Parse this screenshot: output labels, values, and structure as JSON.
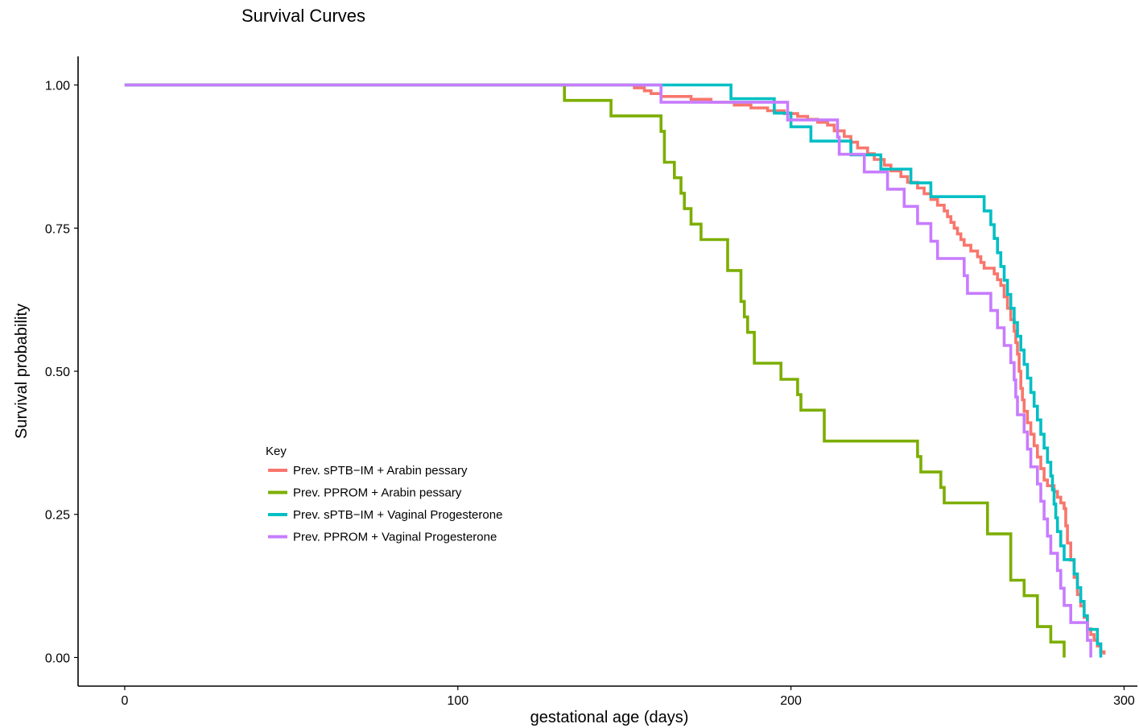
{
  "chart_data": {
    "type": "line",
    "step": true,
    "title": "Survival Curves",
    "xlabel": "gestational age (days)",
    "ylabel": "Survival probability",
    "xlim": [
      -14,
      304
    ],
    "ylim": [
      -0.05,
      1.05
    ],
    "x_ticks": [
      0,
      100,
      200,
      300
    ],
    "x_tick_labels": [
      "0",
      "100",
      "200",
      "300"
    ],
    "y_ticks": [
      0,
      0.25,
      0.5,
      0.75,
      1
    ],
    "y_tick_labels": [
      "0.00",
      "0.25",
      "0.50",
      "0.75",
      "1.00"
    ],
    "grid": false,
    "legend": {
      "title": "Key",
      "position": "inside-left-lower"
    },
    "series": [
      {
        "name": "Prev. sPTB−IM + Arabin pessary",
        "color": "#F8766D",
        "points": [
          [
            0,
            1.0
          ],
          [
            153,
            0.995
          ],
          [
            156,
            0.99
          ],
          [
            158,
            0.985
          ],
          [
            161,
            0.98
          ],
          [
            170,
            0.975
          ],
          [
            176,
            0.97
          ],
          [
            183,
            0.965
          ],
          [
            188,
            0.96
          ],
          [
            193,
            0.955
          ],
          [
            198,
            0.95
          ],
          [
            202,
            0.945
          ],
          [
            205,
            0.94
          ],
          [
            208,
            0.935
          ],
          [
            211,
            0.93
          ],
          [
            213,
            0.92
          ],
          [
            216,
            0.91
          ],
          [
            218,
            0.9
          ],
          [
            220,
            0.89
          ],
          [
            223,
            0.88
          ],
          [
            225,
            0.87
          ],
          [
            228,
            0.86
          ],
          [
            230,
            0.85
          ],
          [
            233,
            0.84
          ],
          [
            235,
            0.83
          ],
          [
            238,
            0.82
          ],
          [
            240,
            0.81
          ],
          [
            242,
            0.8
          ],
          [
            244,
            0.79
          ],
          [
            246,
            0.78
          ],
          [
            247,
            0.77
          ],
          [
            248,
            0.76
          ],
          [
            249,
            0.75
          ],
          [
            250,
            0.74
          ],
          [
            251,
            0.73
          ],
          [
            252,
            0.72
          ],
          [
            254,
            0.71
          ],
          [
            256,
            0.7
          ],
          [
            257,
            0.69
          ],
          [
            258,
            0.68
          ],
          [
            261,
            0.67
          ],
          [
            262,
            0.66
          ],
          [
            263,
            0.65
          ],
          [
            264,
            0.63
          ],
          [
            265,
            0.61
          ],
          [
            266,
            0.59
          ],
          [
            267,
            0.57
          ],
          [
            267.5,
            0.55
          ],
          [
            268,
            0.53
          ],
          [
            268.5,
            0.5
          ],
          [
            269,
            0.47
          ],
          [
            269.5,
            0.45
          ],
          [
            270,
            0.43
          ],
          [
            271,
            0.41
          ],
          [
            272,
            0.39
          ],
          [
            273,
            0.37
          ],
          [
            274,
            0.35
          ],
          [
            275,
            0.33
          ],
          [
            276,
            0.31
          ],
          [
            277,
            0.3
          ],
          [
            279,
            0.29
          ],
          [
            280,
            0.28
          ],
          [
            281,
            0.27
          ],
          [
            282,
            0.26
          ],
          [
            282.5,
            0.23
          ],
          [
            283,
            0.2
          ],
          [
            284,
            0.17
          ],
          [
            285,
            0.14
          ],
          [
            286,
            0.11
          ],
          [
            287,
            0.09
          ],
          [
            288,
            0.07
          ],
          [
            289,
            0.05
          ],
          [
            290,
            0.04
          ],
          [
            291,
            0.03
          ],
          [
            292,
            0.02
          ],
          [
            293,
            0.01
          ],
          [
            294,
            0.005
          ]
        ]
      },
      {
        "name": "Prev. PPROM + Arabin pessary",
        "color": "#7CAE00",
        "points": [
          [
            0,
            1.0
          ],
          [
            132,
            0.973
          ],
          [
            146,
            0.946
          ],
          [
            161,
            0.919
          ],
          [
            162,
            0.865
          ],
          [
            165,
            0.838
          ],
          [
            167,
            0.811
          ],
          [
            168,
            0.784
          ],
          [
            170,
            0.757
          ],
          [
            173,
            0.73
          ],
          [
            181,
            0.676
          ],
          [
            185,
            0.622
          ],
          [
            186,
            0.595
          ],
          [
            187,
            0.568
          ],
          [
            189,
            0.514
          ],
          [
            197,
            0.486
          ],
          [
            202,
            0.459
          ],
          [
            203,
            0.432
          ],
          [
            210,
            0.378
          ],
          [
            238,
            0.351
          ],
          [
            239,
            0.324
          ],
          [
            245,
            0.297
          ],
          [
            246,
            0.27
          ],
          [
            259,
            0.216
          ],
          [
            266,
            0.135
          ],
          [
            270,
            0.108
          ],
          [
            274,
            0.054
          ],
          [
            278,
            0.027
          ],
          [
            282,
            0.0
          ]
        ]
      },
      {
        "name": "Prev. sPTB−IM + Vaginal Progesterone",
        "color": "#00BFC4",
        "points": [
          [
            0,
            1.0
          ],
          [
            182,
            0.976
          ],
          [
            195,
            0.951
          ],
          [
            200,
            0.927
          ],
          [
            206,
            0.902
          ],
          [
            218,
            0.878
          ],
          [
            227,
            0.853
          ],
          [
            236,
            0.829
          ],
          [
            242,
            0.805
          ],
          [
            258,
            0.78
          ],
          [
            260,
            0.756
          ],
          [
            261,
            0.732
          ],
          [
            262,
            0.707
          ],
          [
            263,
            0.683
          ],
          [
            264,
            0.659
          ],
          [
            265,
            0.634
          ],
          [
            266,
            0.61
          ],
          [
            267,
            0.585
          ],
          [
            268,
            0.561
          ],
          [
            269,
            0.537
          ],
          [
            270,
            0.512
          ],
          [
            271,
            0.488
          ],
          [
            272,
            0.463
          ],
          [
            273,
            0.439
          ],
          [
            274,
            0.415
          ],
          [
            275,
            0.39
          ],
          [
            276,
            0.366
          ],
          [
            277,
            0.341
          ],
          [
            278,
            0.317
          ],
          [
            278.5,
            0.293
          ],
          [
            279,
            0.268
          ],
          [
            279.5,
            0.244
          ],
          [
            280,
            0.22
          ],
          [
            281,
            0.195
          ],
          [
            282,
            0.171
          ],
          [
            285,
            0.146
          ],
          [
            286,
            0.122
          ],
          [
            287,
            0.098
          ],
          [
            288,
            0.073
          ],
          [
            289,
            0.049
          ],
          [
            292,
            0.024
          ],
          [
            293,
            0.0
          ]
        ]
      },
      {
        "name": "Prev. PPROM + Vaginal Progesterone",
        "color": "#C77CFF",
        "points": [
          [
            0,
            1.0
          ],
          [
            161,
            0.97
          ],
          [
            199,
            0.939
          ],
          [
            214,
            0.909
          ],
          [
            214.5,
            0.879
          ],
          [
            222,
            0.848
          ],
          [
            229,
            0.818
          ],
          [
            234,
            0.788
          ],
          [
            238,
            0.758
          ],
          [
            242,
            0.727
          ],
          [
            244,
            0.697
          ],
          [
            252,
            0.667
          ],
          [
            253,
            0.636
          ],
          [
            260,
            0.606
          ],
          [
            262,
            0.576
          ],
          [
            264,
            0.545
          ],
          [
            266,
            0.515
          ],
          [
            267,
            0.485
          ],
          [
            267.5,
            0.455
          ],
          [
            268,
            0.424
          ],
          [
            270,
            0.394
          ],
          [
            271,
            0.364
          ],
          [
            272,
            0.333
          ],
          [
            274,
            0.303
          ],
          [
            275,
            0.273
          ],
          [
            276,
            0.242
          ],
          [
            277,
            0.212
          ],
          [
            278,
            0.182
          ],
          [
            280,
            0.152
          ],
          [
            281,
            0.121
          ],
          [
            282,
            0.091
          ],
          [
            284,
            0.061
          ],
          [
            289,
            0.03
          ],
          [
            290,
            0.0
          ]
        ]
      }
    ]
  }
}
